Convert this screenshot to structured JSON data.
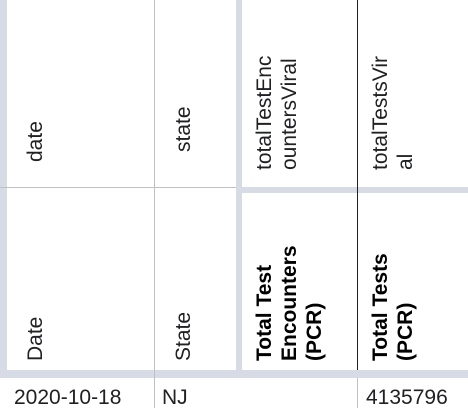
{
  "sheet": {
    "field_row": [
      "date",
      "state",
      "totalTestEncountersViral",
      "totalTestsViral"
    ],
    "field_row_display": [
      [
        "date"
      ],
      [
        "state"
      ],
      [
        "totalTestEnc",
        "ountersViral"
      ],
      [
        "totalTestsVir",
        "al"
      ]
    ],
    "label_row": [
      [
        "Date"
      ],
      [
        "State"
      ],
      [
        "Total Test",
        "Encounters",
        "(PCR)"
      ],
      [
        "Total Tests",
        "(PCR)"
      ]
    ],
    "data_row": {
      "date": "2020-10-18",
      "state": "NJ",
      "totalTestEncountersViral": "",
      "totalTestsViral": "4135796"
    }
  },
  "colors": {
    "gridline": "#c0c0c0",
    "frozen_band": "#d6dbe6"
  }
}
